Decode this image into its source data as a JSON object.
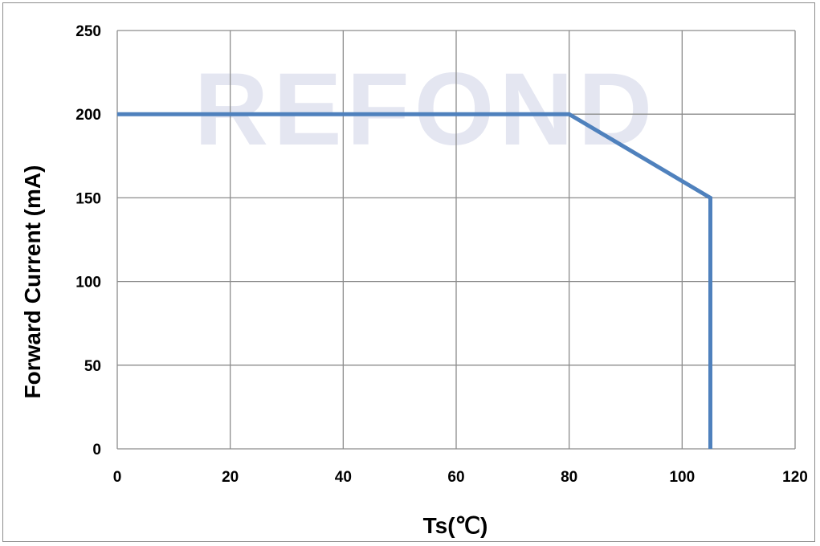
{
  "watermark_text": "REFOND",
  "colors": {
    "series": "#4f81bd",
    "grid": "#8c8c8c",
    "watermark": "#e4e6f1",
    "text": "#000000"
  },
  "chart_data": {
    "type": "line",
    "title": "",
    "xlabel": "Ts(℃)",
    "ylabel": "Forward Current (mA)",
    "xlim": [
      0,
      120
    ],
    "ylim": [
      0,
      250
    ],
    "x_ticks": [
      0,
      20,
      40,
      60,
      80,
      100,
      120
    ],
    "y_ticks": [
      0,
      50,
      100,
      150,
      200,
      250
    ],
    "grid": true,
    "legend": "none",
    "series": [
      {
        "x": [
          0,
          80,
          105,
          105
        ],
        "y": [
          200,
          200,
          150,
          0
        ]
      }
    ]
  }
}
